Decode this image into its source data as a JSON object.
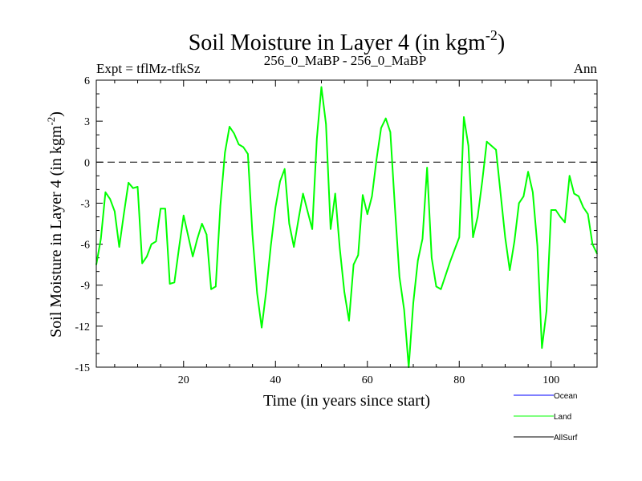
{
  "chart_data": {
    "type": "line",
    "title": "Soil Moisture in Layer 4 (in kgm",
    "title_sup": "-2",
    "title_close": ")",
    "subtitle_left": "Expt = tflMz-tfkSz",
    "subtitle_center": "256_0_MaBP - 256_0_MaBP",
    "subtitle_right": "Ann",
    "xlabel": "Time (in years since start)",
    "ylabel": "Soil Moisture in Layer 4 (in kgm",
    "ylabel_sup": "-2",
    "ylabel_close": ")",
    "xlim": [
      1,
      110
    ],
    "ylim": [
      -15,
      6
    ],
    "xticks": [
      20,
      40,
      60,
      80,
      100
    ],
    "yticks": [
      -15,
      -12,
      -9,
      -6,
      -3,
      0,
      3,
      6
    ],
    "ytick_labels": [
      "-15",
      "-12",
      "-9",
      "-6",
      "-3",
      "0",
      "3",
      "6"
    ],
    "xtick_labels": [
      "20",
      "40",
      "60",
      "80",
      "100"
    ],
    "zero_line": 0,
    "legend": [
      {
        "name": "Ocean",
        "color": "#0000ff"
      },
      {
        "name": "Land",
        "color": "#00ff00"
      },
      {
        "name": "AllSurf",
        "color": "#000000"
      }
    ],
    "series": [
      {
        "name": "Land",
        "color": "#00ff00",
        "x": [
          1,
          2,
          3,
          4,
          5,
          6,
          7,
          8,
          9,
          10,
          11,
          12,
          13,
          14,
          15,
          16,
          17,
          18,
          19,
          20,
          21,
          22,
          23,
          24,
          25,
          26,
          27,
          28,
          29,
          30,
          31,
          32,
          33,
          34,
          35,
          36,
          37,
          38,
          39,
          40,
          41,
          42,
          43,
          44,
          45,
          46,
          47,
          48,
          49,
          50,
          51,
          52,
          53,
          54,
          55,
          56,
          57,
          58,
          59,
          60,
          61,
          62,
          63,
          64,
          65,
          66,
          67,
          68,
          69,
          70,
          71,
          72,
          73,
          74,
          75,
          76,
          77,
          78,
          79,
          80,
          81,
          82,
          83,
          84,
          85,
          86,
          87,
          88,
          89,
          90,
          91,
          92,
          93,
          94,
          95,
          96,
          97,
          98,
          99,
          100,
          101,
          102,
          103,
          104,
          105,
          106,
          107,
          108,
          109,
          110
        ],
        "values": [
          -7.5,
          -5.6,
          -2.2,
          -2.7,
          -3.6,
          -6.2,
          -3.8,
          -1.5,
          -1.9,
          -1.8,
          -7.4,
          -6.9,
          -6.0,
          -5.8,
          -3.4,
          -3.4,
          -8.9,
          -8.8,
          -6.3,
          -3.9,
          -5.4,
          -6.9,
          -5.6,
          -4.5,
          -5.3,
          -9.3,
          -9.1,
          -3.2,
          0.7,
          2.6,
          2.1,
          1.3,
          1.1,
          0.6,
          -5.3,
          -9.6,
          -12.1,
          -9.4,
          -6.1,
          -3.3,
          -1.4,
          -0.5,
          -4.5,
          -6.2,
          -4.2,
          -2.3,
          -3.6,
          -4.9,
          1.7,
          5.5,
          2.8,
          -4.9,
          -2.3,
          -6.3,
          -9.5,
          -11.6,
          -7.5,
          -6.8,
          -2.4,
          -3.8,
          -2.5,
          0.2,
          2.5,
          3.2,
          2.2,
          -3.3,
          -8.4,
          -10.8,
          -15.0,
          -10.3,
          -7.2,
          -5.6,
          -0.4,
          -7.0,
          -9.1,
          -9.3,
          -8.3,
          -7.3,
          -6.4,
          -5.5,
          3.3,
          1.2,
          -5.5,
          -4.0,
          -1.4,
          1.5,
          1.2,
          0.9,
          -2.3,
          -5.5,
          -7.9,
          -5.8,
          -3.0,
          -2.5,
          -0.7,
          -2.2,
          -6.1,
          -13.6,
          -10.9,
          -3.5,
          -3.5,
          -4.0,
          -4.4,
          -1.0,
          -2.3,
          -2.5,
          -3.3,
          -3.8,
          -6.0,
          -6.7
        ]
      }
    ]
  }
}
